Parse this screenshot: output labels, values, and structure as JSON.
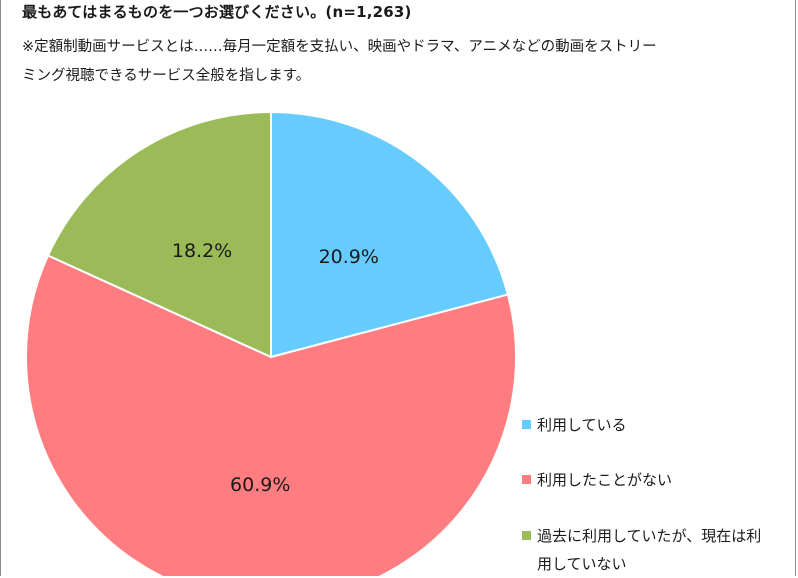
{
  "header": {
    "title": "最もあてはまるものを一つお選びください。(n=1,263)",
    "note_line1": "※定額制動画サービスとは……毎月一定額を支払い、映画やドラマ、アニメなどの動画をストリー",
    "note_line2": "ミング視聴できるサービス全般を指します。"
  },
  "chart_data": {
    "type": "pie",
    "title": "最もあてはまるものを一つお選びください。(n=1,263)",
    "categories": [
      "利用している",
      "利用したことがない",
      "過去に利用していたが、現在は利用していない"
    ],
    "values": [
      20.9,
      60.9,
      18.2
    ],
    "labels": [
      "20.9%",
      "60.9%",
      "18.2%"
    ],
    "colors": [
      "#66CCFF",
      "#FF7C80",
      "#9BBB59"
    ],
    "start_angle": "12 o'clock",
    "direction": "clockwise",
    "legend_position": "right"
  },
  "legend": {
    "items": [
      {
        "label": "利用している",
        "color": "#66CCFF"
      },
      {
        "label": "利用したことがない",
        "color": "#FF7C80"
      },
      {
        "label_line1": "過去に利用していたが、現在は利",
        "label_line2": "用していない",
        "color": "#9BBB59"
      }
    ]
  }
}
